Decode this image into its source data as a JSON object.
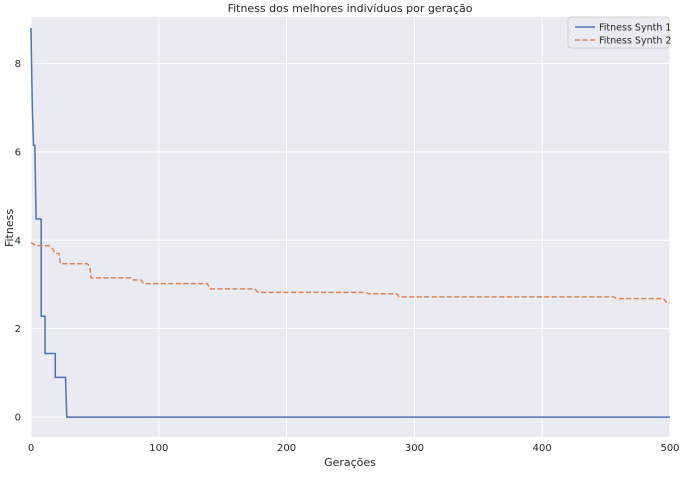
{
  "chart_data": {
    "type": "line",
    "title": "Fitness dos melhores indivíduos por geração",
    "xlabel": "Gerações",
    "ylabel": "Fitness",
    "xlim": [
      0,
      500
    ],
    "ylim": [
      -0.45,
      9.05
    ],
    "xticks": [
      0,
      100,
      200,
      300,
      400,
      500
    ],
    "yticks": [
      0,
      2,
      4,
      6,
      8
    ],
    "grid": true,
    "legend_position": "top-right",
    "series": [
      {
        "name": "Fitness Synth 1",
        "color": "#4c72b0",
        "dash": "solid",
        "points": [
          [
            0,
            8.8
          ],
          [
            1,
            7.0
          ],
          [
            2,
            6.15
          ],
          [
            3,
            6.15
          ],
          [
            4,
            4.48
          ],
          [
            8,
            4.48
          ],
          [
            8,
            2.28
          ],
          [
            11,
            2.28
          ],
          [
            11,
            1.44
          ],
          [
            19,
            1.44
          ],
          [
            19,
            0.9
          ],
          [
            27,
            0.9
          ],
          [
            28,
            0.0
          ],
          [
            500,
            0.0
          ]
        ]
      },
      {
        "name": "Fitness Synth 2",
        "color": "#dd8452",
        "dash": "dashed",
        "points": [
          [
            0,
            3.95
          ],
          [
            4,
            3.88
          ],
          [
            14,
            3.88
          ],
          [
            17,
            3.8
          ],
          [
            19,
            3.7
          ],
          [
            22,
            3.7
          ],
          [
            23,
            3.47
          ],
          [
            44,
            3.47
          ],
          [
            46,
            3.4
          ],
          [
            47,
            3.15
          ],
          [
            78,
            3.15
          ],
          [
            80,
            3.1
          ],
          [
            86,
            3.1
          ],
          [
            88,
            3.02
          ],
          [
            138,
            3.02
          ],
          [
            140,
            2.9
          ],
          [
            175,
            2.9
          ],
          [
            177,
            2.84
          ],
          [
            178,
            2.82
          ],
          [
            262,
            2.82
          ],
          [
            264,
            2.79
          ],
          [
            286,
            2.79
          ],
          [
            288,
            2.72
          ],
          [
            456,
            2.72
          ],
          [
            458,
            2.68
          ],
          [
            495,
            2.68
          ],
          [
            497,
            2.6
          ],
          [
            500,
            2.6
          ]
        ]
      }
    ]
  }
}
